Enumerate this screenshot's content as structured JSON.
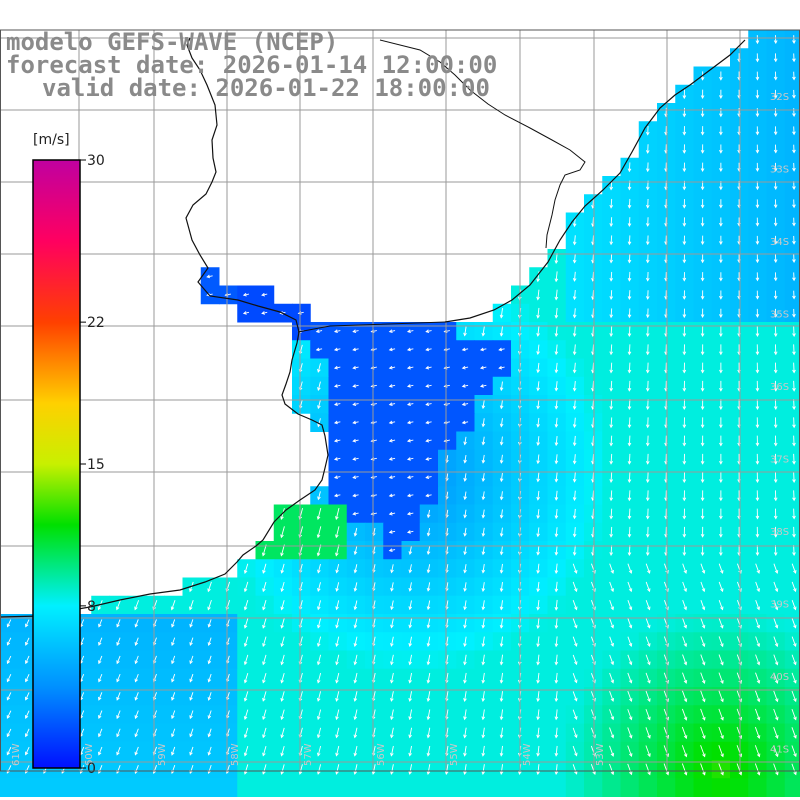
{
  "title": {
    "line1": "modelo GEFS-WAVE (NCEP)",
    "line2": "forecast date: 2026-01-14 12:00:00",
    "line3": "valid date: 2026-01-22 18:00:00"
  },
  "colorbar": {
    "units": "[m/s]",
    "min": 0,
    "max": 30,
    "ticks": [
      "30",
      "22",
      "15",
      "8",
      "0"
    ],
    "tick_values": [
      30,
      22,
      15,
      8,
      0
    ],
    "stops": [
      {
        "v": 0,
        "color": "#0010ff"
      },
      {
        "v": 4,
        "color": "#0090ff"
      },
      {
        "v": 8,
        "color": "#00f0ff"
      },
      {
        "v": 12,
        "color": "#00e000"
      },
      {
        "v": 15,
        "color": "#c8f000"
      },
      {
        "v": 18,
        "color": "#ffd000"
      },
      {
        "v": 22,
        "color": "#ff4000"
      },
      {
        "v": 26,
        "color": "#ff0060"
      },
      {
        "v": 30,
        "color": "#c000a0"
      }
    ]
  },
  "latitude_labels": [
    "32S",
    "33S",
    "34S",
    "35S",
    "36S",
    "37S",
    "38S",
    "39S",
    "40S",
    "41S"
  ],
  "longitude_labels": [
    "61W",
    "60W",
    "59W",
    "58W",
    "57W",
    "56W",
    "55W",
    "54W",
    "53W"
  ],
  "colors": {
    "land": "#ffffff",
    "grid": "#9a9a9a",
    "coast": "#111111",
    "arrow": "#ffffff",
    "title": "#8a8a8a"
  }
}
